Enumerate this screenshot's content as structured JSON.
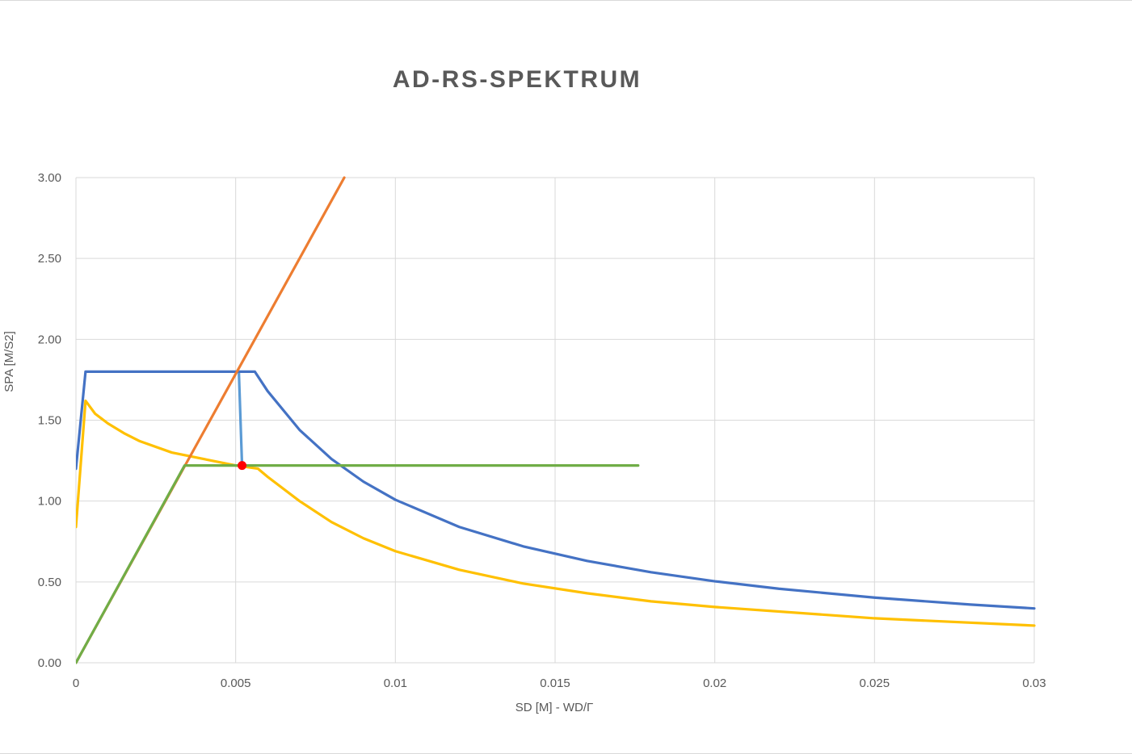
{
  "chart_data": {
    "type": "line",
    "title": "AD-RS-SPEKTRUM",
    "xlabel": "SD [M] -  WD/Γ",
    "ylabel": "SPA [M/S2]",
    "xlim": [
      0,
      0.03
    ],
    "ylim": [
      0,
      3.0
    ],
    "x_ticks": [
      "0",
      "0.005",
      "0.01",
      "0.015",
      "0.02",
      "0.025",
      "0.03"
    ],
    "y_ticks": [
      "0.00",
      "0.50",
      "1.00",
      "1.50",
      "2.00",
      "2.50",
      "3.00"
    ],
    "grid": true,
    "legend": "none",
    "colors": {
      "blue": "#4472c4",
      "yellow": "#ffc000",
      "orange": "#ed7d31",
      "green": "#70ad47",
      "light_blue": "#5b9bd5",
      "point": "#ff0000"
    },
    "series": [
      {
        "color": "#4472c4",
        "points": [
          [
            0,
            1.2
          ],
          [
            0.0003,
            1.8
          ],
          [
            0.0056,
            1.8
          ],
          [
            0.006,
            1.68
          ],
          [
            0.007,
            1.44
          ],
          [
            0.008,
            1.26
          ],
          [
            0.009,
            1.12
          ],
          [
            0.01,
            1.008
          ],
          [
            0.012,
            0.84
          ],
          [
            0.014,
            0.72
          ],
          [
            0.016,
            0.63
          ],
          [
            0.018,
            0.56
          ],
          [
            0.02,
            0.504
          ],
          [
            0.022,
            0.458
          ],
          [
            0.025,
            0.403
          ],
          [
            0.028,
            0.36
          ],
          [
            0.03,
            0.336
          ]
        ]
      },
      {
        "color": "#ffc000",
        "points": [
          [
            0,
            0.84
          ],
          [
            0.0003,
            1.62
          ],
          [
            0.0006,
            1.54
          ],
          [
            0.001,
            1.48
          ],
          [
            0.0015,
            1.42
          ],
          [
            0.002,
            1.37
          ],
          [
            0.003,
            1.3
          ],
          [
            0.004,
            1.26
          ],
          [
            0.005,
            1.22
          ],
          [
            0.0057,
            1.2
          ],
          [
            0.006,
            1.15
          ],
          [
            0.007,
            1.0
          ],
          [
            0.008,
            0.87
          ],
          [
            0.009,
            0.77
          ],
          [
            0.01,
            0.69
          ],
          [
            0.012,
            0.575
          ],
          [
            0.014,
            0.49
          ],
          [
            0.016,
            0.43
          ],
          [
            0.018,
            0.38
          ],
          [
            0.02,
            0.345
          ],
          [
            0.025,
            0.275
          ],
          [
            0.03,
            0.23
          ]
        ]
      },
      {
        "color": "#ed7d31",
        "points": [
          [
            0,
            0
          ],
          [
            0.0084,
            3.0
          ]
        ]
      },
      {
        "color": "#70ad47",
        "points": [
          [
            0,
            0
          ],
          [
            0.0034,
            1.22
          ],
          [
            0.0176,
            1.22
          ]
        ]
      },
      {
        "color": "#5b9bd5",
        "points": [
          [
            0.0051,
            1.8
          ],
          [
            0.0052,
            1.22
          ]
        ]
      }
    ],
    "performance_point": {
      "x": 0.0052,
      "y": 1.22,
      "color": "#ff0000"
    }
  }
}
